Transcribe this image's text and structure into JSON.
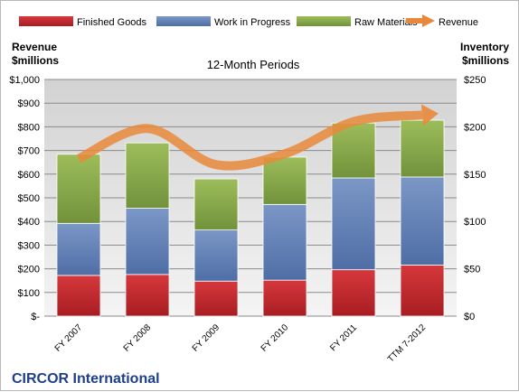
{
  "chart_data": {
    "type": "bar",
    "subtitle": "12-Month Periods",
    "company": "CIRCOR International",
    "left_axis_title": [
      "Revenue",
      "$millions"
    ],
    "right_axis_title": [
      "Inventory",
      "$millions"
    ],
    "categories": [
      "FY 2007",
      "FY 2008",
      "FY 2009",
      "FY 2010",
      "FY 2011",
      "TTM 7-2012"
    ],
    "left_axis": {
      "min": 0,
      "max": 1000,
      "step": 100,
      "tick_labels": [
        "$-",
        "$100",
        "$200",
        "$300",
        "$400",
        "$500",
        "$600",
        "$700",
        "$800",
        "$900",
        "$1,000"
      ]
    },
    "right_axis": {
      "min": 0,
      "max": 250,
      "step": 50,
      "tick_labels": [
        "$0",
        "$50",
        "$100",
        "$150",
        "$200",
        "$250"
      ]
    },
    "stacked": true,
    "grid": true,
    "legend_position": "top",
    "series": [
      {
        "name": "Finished Goods",
        "type": "bar",
        "axis": "right",
        "color": "#c0262b",
        "values": [
          43,
          44,
          37,
          38,
          49,
          54
        ]
      },
      {
        "name": "Work in Progress",
        "type": "bar",
        "axis": "right",
        "color": "#5f7fb5",
        "values": [
          55,
          70,
          54,
          80,
          97,
          93
        ]
      },
      {
        "name": "Raw Materials",
        "type": "bar",
        "axis": "right",
        "color": "#86a84a",
        "values": [
          73,
          69,
          54,
          50,
          58,
          60
        ]
      },
      {
        "name": "Revenue",
        "type": "line",
        "axis": "left",
        "color": "#e9883a",
        "values": [
          665,
          793,
          640,
          686,
          822,
          850
        ]
      }
    ]
  }
}
